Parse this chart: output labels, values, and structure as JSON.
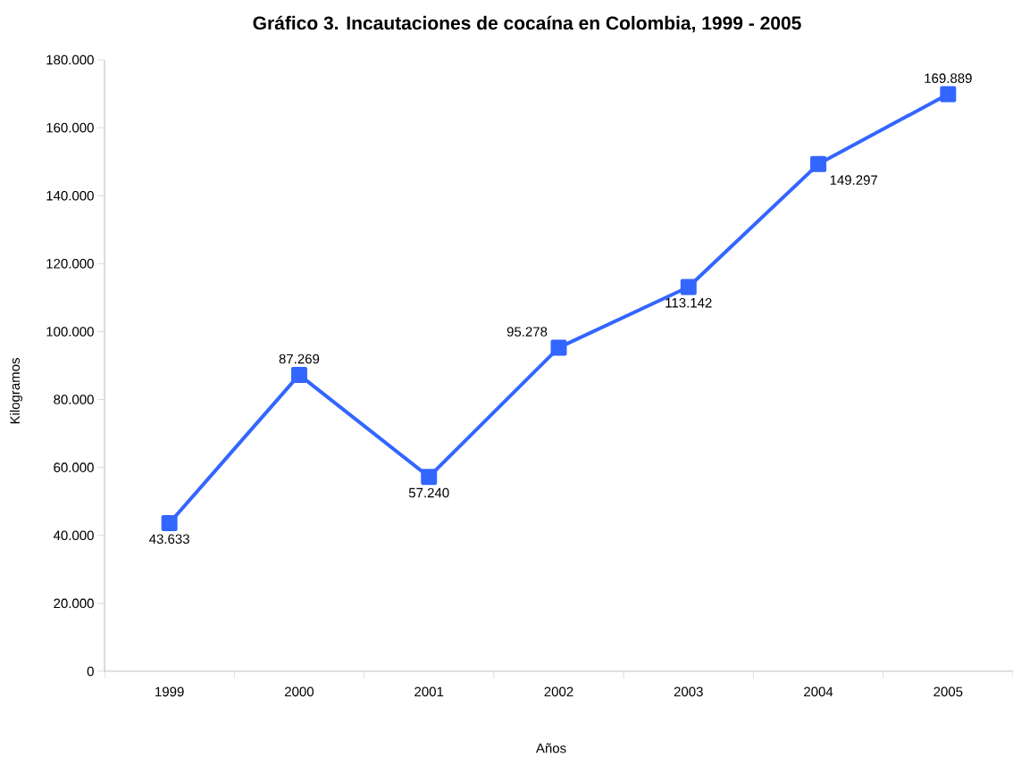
{
  "chart_data": {
    "type": "line",
    "title": "Gráfico 3. Incautaciones de cocaína en Colombia, 1999 - 2005",
    "xlabel": "Años",
    "ylabel": "Kilogramos",
    "categories": [
      "1999",
      "2000",
      "2001",
      "2002",
      "2003",
      "2004",
      "2005"
    ],
    "series": [
      {
        "color": "#3366ff",
        "values": [
          43633,
          87269,
          57240,
          95278,
          113142,
          149297,
          169889
        ],
        "value_labels": [
          "43.633",
          "87.269",
          "57.240",
          "95.278",
          "113.142",
          "149.297",
          "169.889"
        ]
      }
    ],
    "ylim": [
      0,
      180000
    ],
    "yticks": [
      0,
      {
        "value": 20000,
        "label": "20.000"
      },
      {
        "value": 40000,
        "label": "40.000"
      },
      {
        "value": 60000,
        "label": "60.000"
      },
      {
        "value": 80000,
        "label": "80.000"
      },
      {
        "value": 100000,
        "label": "100.000"
      },
      {
        "value": 120000,
        "label": "120.000"
      },
      {
        "value": 140000,
        "label": "140.000"
      },
      {
        "value": 160000,
        "label": "160.000"
      },
      {
        "value": 180000,
        "label": "180.000"
      }
    ],
    "marker": "square",
    "line_style": "solid"
  }
}
